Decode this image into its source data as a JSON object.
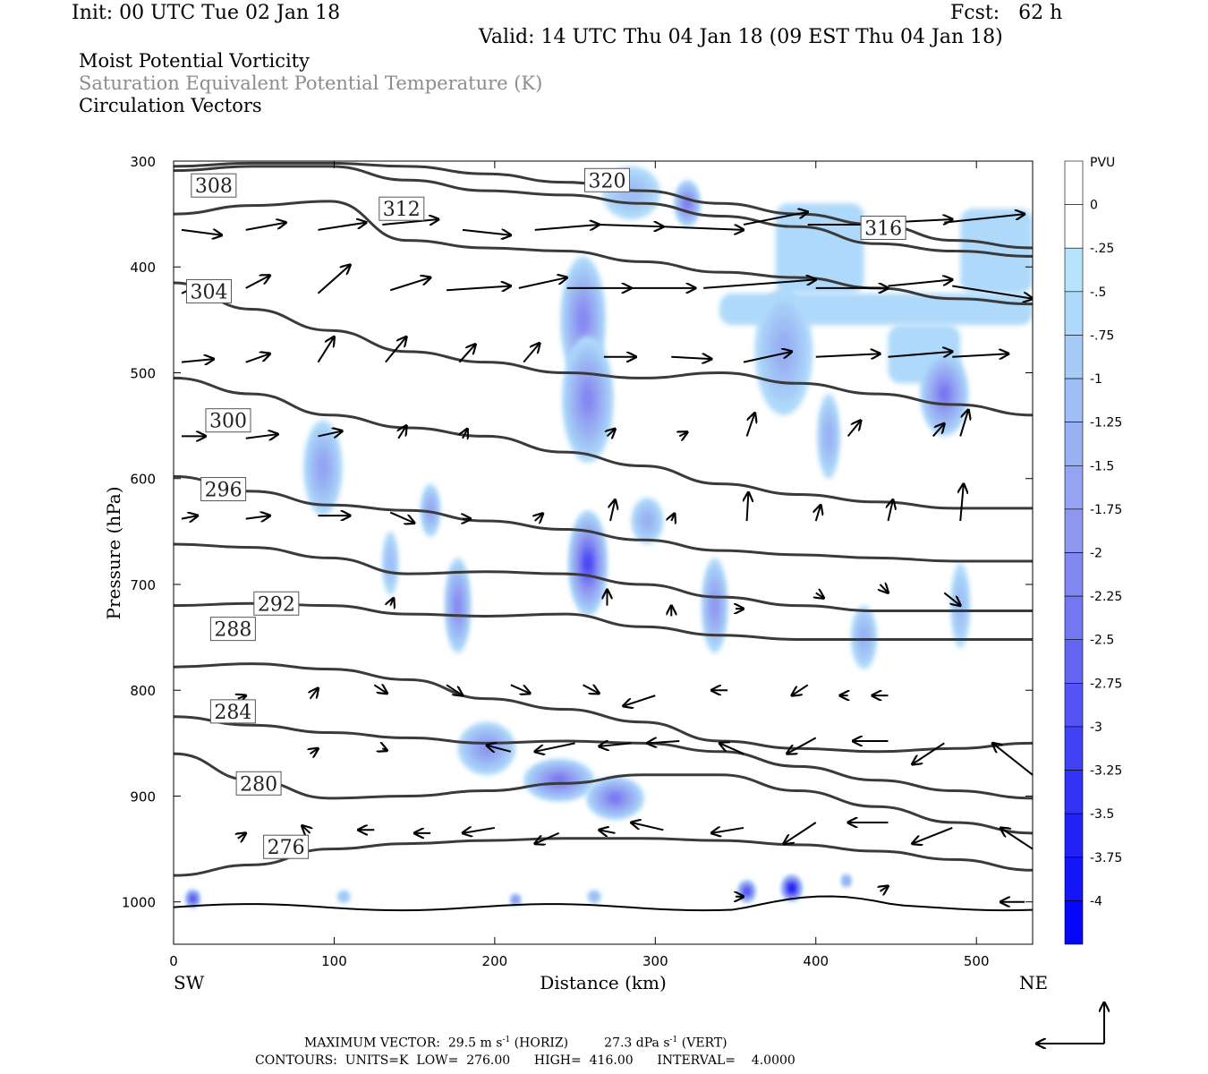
{
  "header": {
    "init": "Init: 00 UTC Tue 02 Jan 18",
    "fcst": "Fcst:   62 h",
    "valid": "Valid: 14 UTC Thu 04 Jan 18 (09 EST Thu 04 Jan 18)"
  },
  "fields": {
    "line1": "Moist Potential Vorticity",
    "line2": "Saturation Equivalent Potential Temperature (K)",
    "line3": "Circulation Vectors"
  },
  "colors": {
    "contour": "#3a3a3a",
    "pv_light": "#b8e4fb",
    "pv_mid": "#8f8ff0",
    "pv_dark": "#1010ee"
  },
  "chart_data": {
    "type": "heatmap",
    "xlabel": "Distance (km)",
    "ylabel": "Pressure (hPa)",
    "xlim": [
      0,
      535
    ],
    "ylim": [
      1040,
      300
    ],
    "x_ticks": [
      0,
      100,
      200,
      300,
      400,
      500
    ],
    "y_ticks": [
      300,
      400,
      500,
      600,
      700,
      800,
      900,
      1000
    ],
    "x_end_labels": {
      "left": "SW",
      "right": "NE"
    },
    "colorbar": {
      "unit": "PVU",
      "levels": [
        "0",
        "-.25",
        "-.5",
        "-.75",
        "-1",
        "-1.25",
        "-1.5",
        "-1.75",
        "-2",
        "-2.25",
        "-2.5",
        "-2.75",
        "-3",
        "-3.25",
        "-3.5",
        "-3.75",
        "-4"
      ],
      "colors": [
        "#ffffff",
        "#ffffff",
        "#b8e4fb",
        "#aed9fa",
        "#a6cbf7",
        "#9fbef5",
        "#99b1f3",
        "#94a4f2",
        "#8f97f0",
        "#8388f1",
        "#7478f2",
        "#6466f3",
        "#5454f4",
        "#4242f5",
        "#3232f6",
        "#2222f7",
        "#1414f8",
        "#0606fa"
      ]
    },
    "theta_contours": [
      {
        "label": "276",
        "y": [
          975,
          965,
          950,
          945,
          942,
          940,
          940,
          942,
          946,
          952,
          960,
          970
        ],
        "lx": 70,
        "lp": 948
      },
      {
        "label": "280",
        "y": [
          860,
          885,
          902,
          900,
          895,
          888,
          880,
          880,
          895,
          910,
          925,
          935
        ],
        "lx": 53,
        "lp": 888
      },
      {
        "label": "284",
        "y": [
          825,
          833,
          840,
          845,
          850,
          848,
          850,
          858,
          872,
          885,
          895,
          902
        ],
        "lx": 37,
        "lp": 820
      },
      {
        "label": "288",
        "y": [
          778,
          775,
          780,
          790,
          808,
          818,
          830,
          848,
          855,
          858,
          855,
          850
        ],
        "lx": 37,
        "lp": 742
      },
      {
        "label": "292",
        "y": [
          720,
          718,
          720,
          728,
          730,
          728,
          740,
          748,
          752,
          752,
          752,
          752
        ],
        "lx": 64,
        "lp": 718
      },
      {
        "label": "296",
        "y": [
          662,
          665,
          675,
          690,
          688,
          690,
          700,
          712,
          720,
          725,
          725,
          725
        ],
        "lx": 31,
        "lp": 610
      },
      {
        "label": "300",
        "y": [
          598,
          612,
          625,
          630,
          640,
          648,
          658,
          668,
          672,
          675,
          678,
          678
        ],
        "lx": 34,
        "lp": 545
      },
      {
        "label": "304",
        "y": [
          505,
          520,
          540,
          552,
          560,
          575,
          588,
          605,
          615,
          622,
          628,
          628
        ],
        "lx": 22,
        "lp": 423
      },
      {
        "label": "308",
        "y": [
          415,
          440,
          460,
          480,
          490,
          500,
          505,
          500,
          510,
          520,
          530,
          540
        ],
        "lx": 25,
        "lp": 323
      },
      {
        "label": "312",
        "y": [
          350,
          342,
          338,
          375,
          382,
          385,
          395,
          405,
          410,
          420,
          430,
          435
        ],
        "lx": 142,
        "lp": 345
      },
      {
        "label": "316",
        "y": [
          309,
          305,
          305,
          318,
          328,
          332,
          340,
          352,
          362,
          378,
          385,
          390
        ],
        "lx": 442,
        "lp": 363
      },
      {
        "label": "320",
        "y": [
          305,
          302,
          302,
          305,
          312,
          320,
          328,
          340,
          350,
          360,
          375,
          382
        ],
        "lx": 270,
        "lp": 318
      }
    ],
    "pv_anomalies": [
      {
        "x": 255,
        "p": 450,
        "rx": 14,
        "rp": 60,
        "v": -1.8
      },
      {
        "x": 258,
        "p": 525,
        "rx": 16,
        "rp": 60,
        "v": -1.9
      },
      {
        "x": 258,
        "p": 680,
        "rx": 12,
        "rp": 50,
        "v": -2.8
      },
      {
        "x": 93,
        "p": 590,
        "rx": 12,
        "rp": 45,
        "v": -1.4
      },
      {
        "x": 177,
        "p": 720,
        "rx": 8,
        "rp": 45,
        "v": -1.9
      },
      {
        "x": 160,
        "p": 630,
        "rx": 6,
        "rp": 25,
        "v": -1.3
      },
      {
        "x": 135,
        "p": 680,
        "rx": 5,
        "rp": 30,
        "v": -0.9
      },
      {
        "x": 195,
        "p": 855,
        "rx": 18,
        "rp": 25,
        "v": -1.7
      },
      {
        "x": 240,
        "p": 885,
        "rx": 22,
        "rp": 20,
        "v": -2.0
      },
      {
        "x": 275,
        "p": 902,
        "rx": 18,
        "rp": 20,
        "v": -2.2
      },
      {
        "x": 337,
        "p": 720,
        "rx": 8,
        "rp": 45,
        "v": -1.6
      },
      {
        "x": 295,
        "p": 640,
        "rx": 10,
        "rp": 22,
        "v": -1.1
      },
      {
        "x": 320,
        "p": 340,
        "rx": 8,
        "rp": 22,
        "v": -2.1
      },
      {
        "x": 285,
        "p": 330,
        "rx": 18,
        "rp": 25,
        "v": -0.8
      },
      {
        "x": 380,
        "p": 480,
        "rx": 18,
        "rp": 60,
        "v": -1.0
      },
      {
        "x": 480,
        "p": 520,
        "rx": 15,
        "rp": 40,
        "v": -2.0
      },
      {
        "x": 408,
        "p": 560,
        "rx": 7,
        "rp": 40,
        "v": -1.0
      },
      {
        "x": 430,
        "p": 750,
        "rx": 8,
        "rp": 30,
        "v": -1.0
      },
      {
        "x": 490,
        "p": 720,
        "rx": 6,
        "rp": 40,
        "v": -0.9
      },
      {
        "x": 385,
        "p": 987,
        "rx": 6,
        "rp": 12,
        "v": -3.8
      },
      {
        "x": 357,
        "p": 990,
        "rx": 5,
        "rp": 10,
        "v": -3.0
      },
      {
        "x": 12,
        "p": 997,
        "rx": 4,
        "rp": 8,
        "v": -3.0
      },
      {
        "x": 106,
        "p": 995,
        "rx": 4,
        "rp": 6,
        "v": -0.9
      },
      {
        "x": 213,
        "p": 998,
        "rx": 3,
        "rp": 5,
        "v": -2.0
      },
      {
        "x": 262,
        "p": 995,
        "rx": 4,
        "rp": 6,
        "v": -1.0
      },
      {
        "x": 419,
        "p": 980,
        "rx": 3,
        "rp": 6,
        "v": -1.6
      }
    ],
    "pv_shelves": [
      {
        "x0": 340,
        "x1": 535,
        "p0": 425,
        "p1": 455,
        "v": -0.4
      },
      {
        "x0": 375,
        "x1": 430,
        "p0": 340,
        "p1": 425,
        "v": -0.4
      },
      {
        "x0": 490,
        "x1": 535,
        "p0": 345,
        "p1": 425,
        "v": -0.4
      },
      {
        "x0": 445,
        "x1": 490,
        "p0": 455,
        "p1": 510,
        "v": -0.4
      }
    ],
    "vectors": [
      [
        5,
        365,
        30,
        370
      ],
      [
        45,
        365,
        70,
        358
      ],
      [
        90,
        365,
        120,
        358
      ],
      [
        130,
        360,
        165,
        355
      ],
      [
        180,
        365,
        210,
        370
      ],
      [
        225,
        365,
        265,
        360
      ],
      [
        265,
        360,
        305,
        362
      ],
      [
        305,
        362,
        355,
        365
      ],
      [
        355,
        360,
        395,
        348
      ],
      [
        395,
        360,
        445,
        360
      ],
      [
        445,
        358,
        485,
        355
      ],
      [
        480,
        358,
        530,
        350
      ],
      [
        5,
        425,
        15,
        418
      ],
      [
        45,
        420,
        60,
        408
      ],
      [
        90,
        425,
        110,
        398
      ],
      [
        135,
        422,
        160,
        410
      ],
      [
        170,
        422,
        210,
        418
      ],
      [
        215,
        420,
        245,
        410
      ],
      [
        245,
        420,
        285,
        420
      ],
      [
        285,
        420,
        325,
        420
      ],
      [
        330,
        420,
        400,
        412
      ],
      [
        400,
        420,
        445,
        420
      ],
      [
        445,
        418,
        485,
        412
      ],
      [
        485,
        418,
        535,
        430
      ],
      [
        5,
        490,
        25,
        487
      ],
      [
        45,
        490,
        60,
        482
      ],
      [
        90,
        490,
        100,
        466
      ],
      [
        132,
        490,
        145,
        466
      ],
      [
        178,
        490,
        188,
        473
      ],
      [
        218,
        490,
        228,
        472
      ],
      [
        268,
        485,
        288,
        485
      ],
      [
        310,
        485,
        335,
        487
      ],
      [
        355,
        490,
        385,
        480
      ],
      [
        400,
        485,
        440,
        482
      ],
      [
        445,
        485,
        485,
        480
      ],
      [
        485,
        485,
        520,
        482
      ],
      [
        5,
        560,
        20,
        560
      ],
      [
        45,
        562,
        65,
        558
      ],
      [
        90,
        560,
        105,
        555
      ],
      [
        140,
        562,
        145,
        550
      ],
      [
        180,
        562,
        183,
        553
      ],
      [
        270,
        560,
        275,
        553
      ],
      [
        315,
        560,
        320,
        556
      ],
      [
        357,
        560,
        362,
        538
      ],
      [
        420,
        560,
        428,
        545
      ],
      [
        473,
        560,
        480,
        548
      ],
      [
        490,
        560,
        495,
        535
      ],
      [
        5,
        638,
        15,
        635
      ],
      [
        45,
        638,
        60,
        635
      ],
      [
        90,
        635,
        110,
        635
      ],
      [
        135,
        632,
        150,
        642
      ],
      [
        180,
        638,
        185,
        638
      ],
      [
        225,
        640,
        230,
        633
      ],
      [
        272,
        640,
        275,
        620
      ],
      [
        310,
        640,
        312,
        633
      ],
      [
        357,
        640,
        358,
        613
      ],
      [
        400,
        640,
        403,
        625
      ],
      [
        445,
        640,
        448,
        620
      ],
      [
        490,
        640,
        492,
        605
      ],
      [
        135,
        720,
        137,
        713
      ],
      [
        270,
        720,
        270,
        705
      ],
      [
        310,
        730,
        310,
        720
      ],
      [
        350,
        723,
        355,
        723
      ],
      [
        400,
        708,
        405,
        713
      ],
      [
        440,
        700,
        445,
        708
      ],
      [
        480,
        708,
        490,
        720
      ],
      [
        40,
        808,
        45,
        805
      ],
      [
        85,
        808,
        90,
        798
      ],
      [
        125,
        795,
        133,
        803
      ],
      [
        170,
        795,
        180,
        805
      ],
      [
        210,
        795,
        222,
        803
      ],
      [
        255,
        795,
        265,
        803
      ],
      [
        300,
        805,
        280,
        815
      ],
      [
        345,
        800,
        335,
        800
      ],
      [
        395,
        795,
        385,
        805
      ],
      [
        420,
        805,
        415,
        805
      ],
      [
        445,
        805,
        435,
        805
      ],
      [
        130,
        855,
        133,
        857
      ],
      [
        85,
        860,
        90,
        855
      ],
      [
        210,
        858,
        195,
        852
      ],
      [
        250,
        850,
        225,
        858
      ],
      [
        285,
        850,
        265,
        853
      ],
      [
        315,
        848,
        295,
        850
      ],
      [
        355,
        860,
        340,
        850
      ],
      [
        400,
        845,
        382,
        860
      ],
      [
        445,
        848,
        423,
        848
      ],
      [
        480,
        850,
        460,
        870
      ],
      [
        535,
        880,
        510,
        850
      ],
      [
        40,
        940,
        45,
        935
      ],
      [
        85,
        935,
        80,
        928
      ],
      [
        125,
        932,
        115,
        932
      ],
      [
        160,
        935,
        150,
        935
      ],
      [
        200,
        930,
        180,
        935
      ],
      [
        240,
        935,
        225,
        945
      ],
      [
        275,
        935,
        265,
        932
      ],
      [
        305,
        932,
        285,
        925
      ],
      [
        355,
        930,
        335,
        935
      ],
      [
        400,
        925,
        380,
        945
      ],
      [
        445,
        925,
        420,
        925
      ],
      [
        485,
        930,
        460,
        945
      ],
      [
        535,
        950,
        515,
        930
      ],
      [
        350,
        995,
        355,
        995
      ],
      [
        440,
        990,
        445,
        985
      ],
      [
        530,
        1000,
        515,
        1000
      ]
    ],
    "footer": {
      "max_vector_label": "MAXIMUM VECTOR:",
      "horiz_value": "29.5",
      "vert_value": "27.3",
      "horiz_unit": "m s",
      "vert_unit": "dPa s",
      "exp": "-1",
      "horiz_tag": "(HORIZ)",
      "vert_tag": "(VERT)",
      "contours": "CONTOURS:  UNITS=K  LOW=  276.00      HIGH=  416.00      INTERVAL=    4.0000"
    }
  }
}
